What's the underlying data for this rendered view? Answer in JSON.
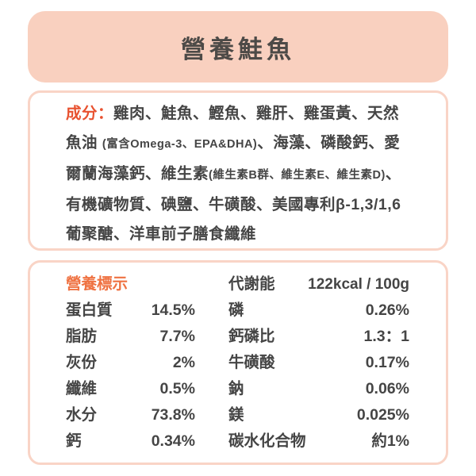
{
  "page": {
    "title": "營養鮭魚"
  },
  "colors": {
    "banner_bg": "#f9d0bf",
    "box_border": "#f9d4c6",
    "title_text": "#4d4a47",
    "body_text": "#454545",
    "accent_red": "#e8512f",
    "accent_orange": "#ef7242"
  },
  "ingredients": {
    "label": "成分：",
    "segments": [
      {
        "text": "雞肉、鮭魚、鰹魚、雞肝、雞蛋黃、天然魚油 ",
        "size": "normal"
      },
      {
        "text": "(富含Omega-3、EPA&DHA)",
        "size": "small"
      },
      {
        "text": "、海藻、磷酸鈣、愛爾蘭海藻鈣、維生素",
        "size": "normal"
      },
      {
        "text": "(維生素B群、維生素E、維生素D)",
        "size": "small"
      },
      {
        "text": "、有機礦物質、碘鹽、牛磺酸、美國專利β-1,3/1,6 葡聚醣、洋車前子膳食纖維",
        "size": "normal"
      }
    ]
  },
  "nutrition": {
    "left_header": "營養標示",
    "right_header": {
      "label": "代謝能",
      "value": "122kcal / 100g"
    },
    "left_rows": [
      {
        "label": "蛋白質",
        "value": "14.5%"
      },
      {
        "label": "脂肪",
        "value": "7.7%"
      },
      {
        "label": "灰份",
        "value": "2%"
      },
      {
        "label": "纖維",
        "value": "0.5%"
      },
      {
        "label": "水分",
        "value": "73.8%"
      },
      {
        "label": "鈣",
        "value": "0.34%"
      }
    ],
    "right_rows": [
      {
        "label": "磷",
        "value": "0.26%"
      },
      {
        "label": "鈣磷比",
        "value": "1.3：1"
      },
      {
        "label": "牛磺酸",
        "value": "0.17%"
      },
      {
        "label": "鈉",
        "value": "0.06%"
      },
      {
        "label": "鎂",
        "value": "0.025%"
      },
      {
        "label": "碳水化合物",
        "value": "約1%"
      }
    ]
  }
}
